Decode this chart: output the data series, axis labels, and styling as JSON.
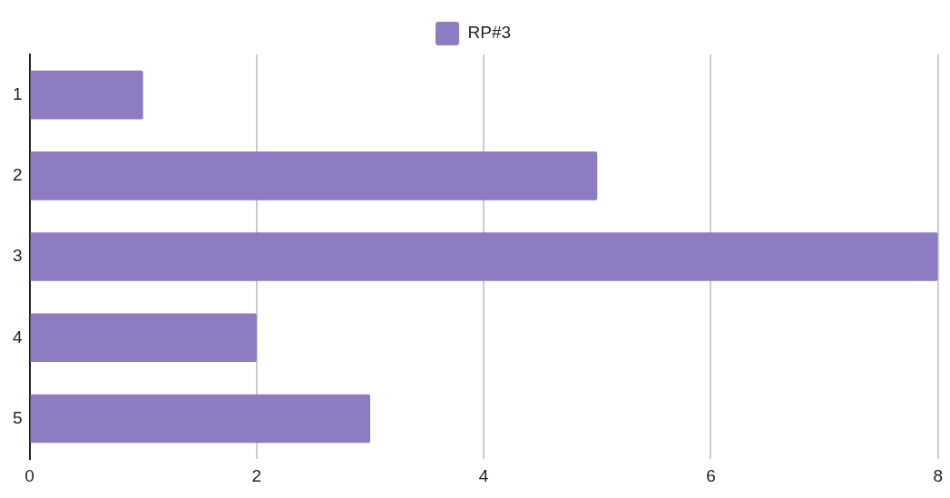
{
  "chart_data": {
    "type": "bar",
    "orientation": "horizontal",
    "categories": [
      "1",
      "2",
      "3",
      "4",
      "5"
    ],
    "series": [
      {
        "name": "RP#3",
        "color": "#8e7cc3",
        "values": [
          1,
          5,
          8,
          2,
          3
        ]
      }
    ],
    "xlim": [
      0,
      8
    ],
    "xticks": [
      0,
      2,
      4,
      6,
      8
    ],
    "grid": "x",
    "legend": "top"
  }
}
